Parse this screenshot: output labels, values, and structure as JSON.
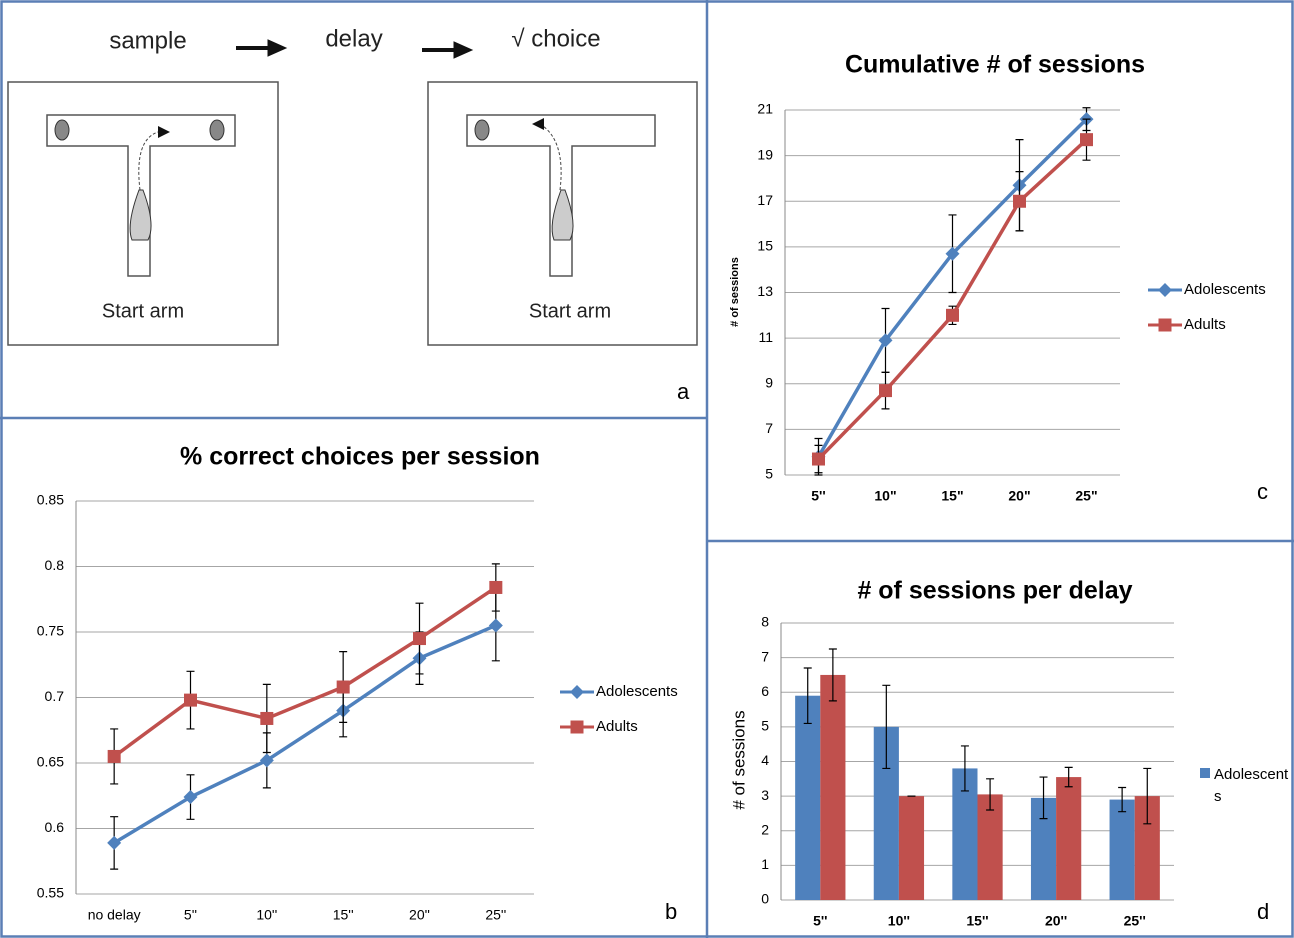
{
  "diagram": {
    "steps": [
      "sample",
      "delay",
      "√ choice"
    ],
    "start_labels": [
      "Start arm",
      "Start arm"
    ],
    "panel_label": "a"
  },
  "chart_data": [
    {
      "type": "line",
      "title": "% correct choices per session",
      "panel_label": "b",
      "categories": [
        "no delay",
        "5''",
        "10''",
        "15''",
        "20''",
        "25''"
      ],
      "series": [
        {
          "name": "Adolescents",
          "color": "#4f81bd",
          "marker": "diamond",
          "values": [
            0.589,
            0.624,
            0.652,
            0.69,
            0.73,
            0.755
          ],
          "errors": [
            0.02,
            0.017,
            0.021,
            0.02,
            0.02,
            0.027
          ]
        },
        {
          "name": "Adults",
          "color": "#c0504d",
          "marker": "square",
          "values": [
            0.655,
            0.698,
            0.684,
            0.708,
            0.745,
            0.784
          ],
          "errors": [
            0.021,
            0.022,
            0.026,
            0.027,
            0.027,
            0.018
          ]
        }
      ],
      "ylim": [
        0.55,
        0.85
      ],
      "yticks": [
        0.55,
        0.6,
        0.65,
        0.7,
        0.75,
        0.8,
        0.85
      ],
      "grid": true,
      "legend": "right"
    },
    {
      "type": "line",
      "title": "Cumulative # of sessions",
      "panel_label": "c",
      "y_label": "# of sessions",
      "categories": [
        "5''",
        "10\"",
        "15\"",
        "20\"",
        "25\""
      ],
      "series": [
        {
          "name": "Adolescents",
          "color": "#4f81bd",
          "marker": "diamond",
          "values": [
            5.8,
            10.9,
            14.7,
            17.7,
            20.6
          ],
          "errors": [
            0.8,
            1.4,
            1.7,
            2.0,
            0.5
          ]
        },
        {
          "name": "Adults",
          "color": "#c0504d",
          "marker": "square",
          "values": [
            5.7,
            8.7,
            12.0,
            17.0,
            19.7
          ],
          "errors": [
            0.6,
            0.8,
            0.4,
            1.3,
            0.9
          ]
        }
      ],
      "ylim": [
        5,
        21
      ],
      "yticks": [
        5,
        7,
        9,
        11,
        13,
        15,
        17,
        19,
        21
      ],
      "grid": true,
      "legend": "right"
    },
    {
      "type": "bar",
      "title": "# of sessions per delay",
      "panel_label": "d",
      "y_label": "# of sessions",
      "categories": [
        "5''",
        "10''",
        "15''",
        "20''",
        "25''"
      ],
      "series": [
        {
          "name": "Adolescents",
          "color": "#4f81bd",
          "values": [
            5.9,
            5.0,
            3.8,
            2.95,
            2.9
          ],
          "errors": [
            0.8,
            1.2,
            0.65,
            0.6,
            0.35
          ]
        },
        {
          "color": "#c0504d",
          "values": [
            6.5,
            3.0,
            3.05,
            3.55,
            3.0
          ],
          "errors": [
            0.75,
            0,
            0.45,
            0.28,
            0.8
          ]
        }
      ],
      "ylim": [
        0,
        8
      ],
      "yticks": [
        0,
        1,
        2,
        3,
        4,
        5,
        6,
        7,
        8
      ],
      "grid": true,
      "legend": "right"
    }
  ]
}
